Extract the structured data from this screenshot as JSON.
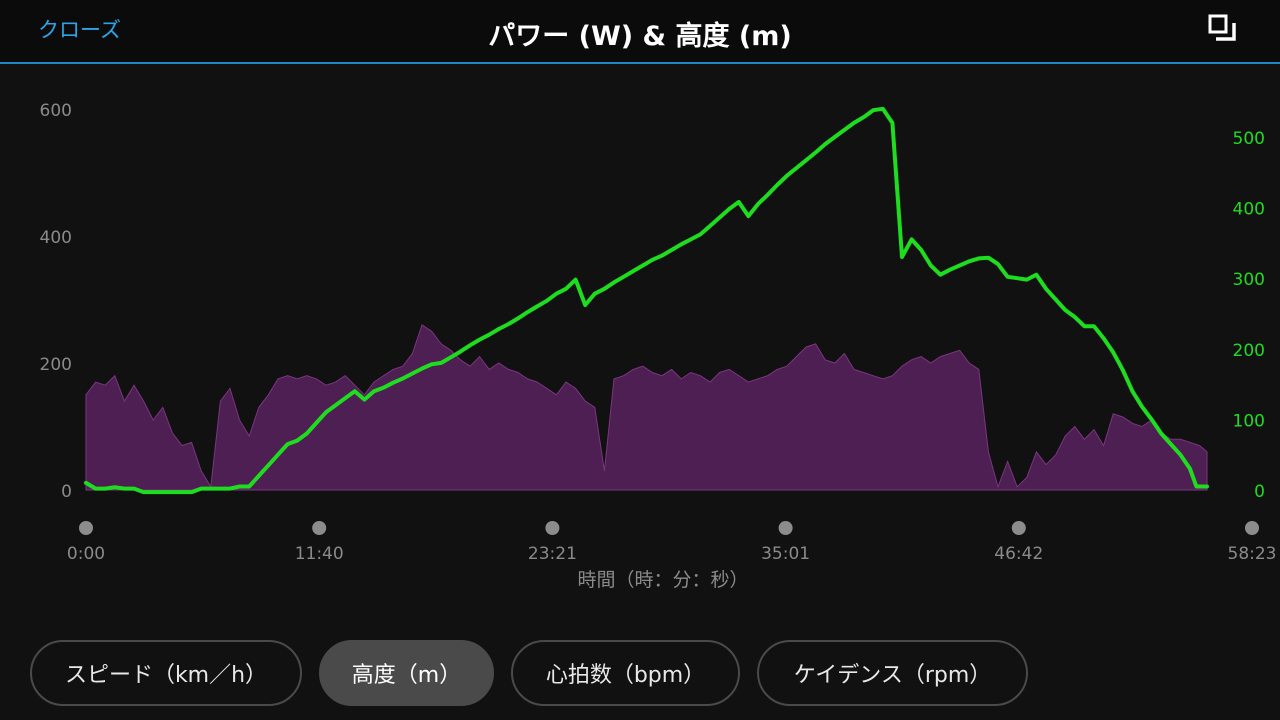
{
  "header": {
    "close_label": "クローズ",
    "title": "パワー (W) & 高度 (m)",
    "expand_icon": "expand-icon"
  },
  "chart_data": {
    "type": "area+line",
    "xlabel": "時間（時：分：秒）",
    "x_ticks": [
      "0:00",
      "11:40",
      "23:21",
      "35:01",
      "46:42",
      "58:23"
    ],
    "x_range_seconds": [
      0,
      3503
    ],
    "left_axis": {
      "series": "パワー (W)",
      "ticks": [
        0,
        200,
        400,
        600
      ],
      "ylim": [
        0,
        600
      ]
    },
    "right_axis": {
      "series": "高度 (m)",
      "ticks": [
        0,
        100,
        200,
        300,
        400,
        500
      ],
      "ylim": [
        0,
        540
      ]
    },
    "colors": {
      "power_fill": "#4e1f52",
      "power_line": "#7a3580",
      "elevation": "#1edc1e",
      "left_axis_text": "#8a8a8a",
      "right_axis_text": "#1edc1e"
    },
    "series": [
      {
        "name": "パワー (W)",
        "axis": "left",
        "points": [
          [
            0,
            150
          ],
          [
            30,
            170
          ],
          [
            60,
            165
          ],
          [
            90,
            180
          ],
          [
            120,
            140
          ],
          [
            150,
            165
          ],
          [
            180,
            140
          ],
          [
            210,
            110
          ],
          [
            240,
            130
          ],
          [
            270,
            90
          ],
          [
            300,
            70
          ],
          [
            330,
            75
          ],
          [
            360,
            30
          ],
          [
            390,
            5
          ],
          [
            420,
            140
          ],
          [
            450,
            160
          ],
          [
            480,
            110
          ],
          [
            510,
            85
          ],
          [
            540,
            130
          ],
          [
            570,
            150
          ],
          [
            600,
            175
          ],
          [
            630,
            180
          ],
          [
            660,
            175
          ],
          [
            690,
            180
          ],
          [
            720,
            175
          ],
          [
            750,
            165
          ],
          [
            780,
            170
          ],
          [
            810,
            180
          ],
          [
            840,
            165
          ],
          [
            870,
            150
          ],
          [
            900,
            170
          ],
          [
            930,
            180
          ],
          [
            960,
            190
          ],
          [
            990,
            195
          ],
          [
            1020,
            215
          ],
          [
            1050,
            260
          ],
          [
            1080,
            250
          ],
          [
            1110,
            230
          ],
          [
            1140,
            220
          ],
          [
            1170,
            205
          ],
          [
            1200,
            195
          ],
          [
            1230,
            210
          ],
          [
            1260,
            190
          ],
          [
            1290,
            200
          ],
          [
            1320,
            190
          ],
          [
            1350,
            185
          ],
          [
            1380,
            175
          ],
          [
            1410,
            170
          ],
          [
            1440,
            160
          ],
          [
            1470,
            150
          ],
          [
            1500,
            170
          ],
          [
            1530,
            160
          ],
          [
            1560,
            140
          ],
          [
            1590,
            130
          ],
          [
            1620,
            30
          ],
          [
            1650,
            175
          ],
          [
            1680,
            180
          ],
          [
            1710,
            190
          ],
          [
            1740,
            195
          ],
          [
            1770,
            185
          ],
          [
            1800,
            180
          ],
          [
            1830,
            190
          ],
          [
            1860,
            175
          ],
          [
            1890,
            185
          ],
          [
            1920,
            180
          ],
          [
            1950,
            170
          ],
          [
            1980,
            185
          ],
          [
            2010,
            190
          ],
          [
            2040,
            180
          ],
          [
            2070,
            170
          ],
          [
            2100,
            175
          ],
          [
            2130,
            180
          ],
          [
            2160,
            190
          ],
          [
            2190,
            195
          ],
          [
            2220,
            210
          ],
          [
            2250,
            225
          ],
          [
            2280,
            230
          ],
          [
            2310,
            205
          ],
          [
            2340,
            200
          ],
          [
            2370,
            215
          ],
          [
            2400,
            190
          ],
          [
            2430,
            185
          ],
          [
            2460,
            180
          ],
          [
            2490,
            175
          ],
          [
            2520,
            180
          ],
          [
            2550,
            195
          ],
          [
            2580,
            205
          ],
          [
            2610,
            210
          ],
          [
            2640,
            200
          ],
          [
            2670,
            210
          ],
          [
            2700,
            215
          ],
          [
            2730,
            220
          ],
          [
            2760,
            200
          ],
          [
            2790,
            190
          ],
          [
            2820,
            60
          ],
          [
            2850,
            5
          ],
          [
            2880,
            45
          ],
          [
            2910,
            5
          ],
          [
            2940,
            20
          ],
          [
            2970,
            60
          ],
          [
            3000,
            40
          ],
          [
            3030,
            55
          ],
          [
            3060,
            85
          ],
          [
            3090,
            100
          ],
          [
            3120,
            80
          ],
          [
            3150,
            95
          ],
          [
            3180,
            70
          ],
          [
            3210,
            120
          ],
          [
            3240,
            115
          ],
          [
            3270,
            105
          ],
          [
            3300,
            100
          ],
          [
            3330,
            110
          ],
          [
            3360,
            90
          ],
          [
            3390,
            80
          ],
          [
            3420,
            80
          ],
          [
            3450,
            75
          ],
          [
            3480,
            70
          ],
          [
            3503,
            60
          ]
        ]
      },
      {
        "name": "高度 (m)",
        "axis": "right",
        "points": [
          [
            0,
            10
          ],
          [
            30,
            2
          ],
          [
            60,
            2
          ],
          [
            90,
            4
          ],
          [
            120,
            2
          ],
          [
            150,
            2
          ],
          [
            180,
            -3
          ],
          [
            200,
            -3
          ],
          [
            250,
            -3
          ],
          [
            300,
            -3
          ],
          [
            330,
            -3
          ],
          [
            360,
            2
          ],
          [
            390,
            2
          ],
          [
            420,
            2
          ],
          [
            450,
            2
          ],
          [
            480,
            5
          ],
          [
            510,
            5
          ],
          [
            540,
            20
          ],
          [
            570,
            35
          ],
          [
            600,
            50
          ],
          [
            630,
            65
          ],
          [
            660,
            70
          ],
          [
            690,
            80
          ],
          [
            720,
            95
          ],
          [
            750,
            110
          ],
          [
            780,
            120
          ],
          [
            810,
            130
          ],
          [
            840,
            140
          ],
          [
            870,
            128
          ],
          [
            900,
            140
          ],
          [
            930,
            145
          ],
          [
            960,
            152
          ],
          [
            990,
            158
          ],
          [
            1020,
            165
          ],
          [
            1050,
            172
          ],
          [
            1080,
            178
          ],
          [
            1110,
            180
          ],
          [
            1140,
            188
          ],
          [
            1170,
            196
          ],
          [
            1200,
            205
          ],
          [
            1230,
            213
          ],
          [
            1260,
            220
          ],
          [
            1290,
            228
          ],
          [
            1320,
            235
          ],
          [
            1350,
            243
          ],
          [
            1380,
            252
          ],
          [
            1410,
            260
          ],
          [
            1440,
            268
          ],
          [
            1470,
            278
          ],
          [
            1500,
            285
          ],
          [
            1530,
            298
          ],
          [
            1560,
            262
          ],
          [
            1590,
            278
          ],
          [
            1620,
            285
          ],
          [
            1650,
            294
          ],
          [
            1680,
            302
          ],
          [
            1710,
            310
          ],
          [
            1740,
            318
          ],
          [
            1770,
            326
          ],
          [
            1800,
            332
          ],
          [
            1830,
            340
          ],
          [
            1860,
            348
          ],
          [
            1890,
            355
          ],
          [
            1920,
            362
          ],
          [
            1950,
            374
          ],
          [
            1980,
            386
          ],
          [
            2010,
            398
          ],
          [
            2040,
            408
          ],
          [
            2070,
            388
          ],
          [
            2100,
            405
          ],
          [
            2130,
            418
          ],
          [
            2160,
            432
          ],
          [
            2190,
            445
          ],
          [
            2220,
            456
          ],
          [
            2250,
            467
          ],
          [
            2280,
            478
          ],
          [
            2310,
            490
          ],
          [
            2340,
            500
          ],
          [
            2370,
            510
          ],
          [
            2400,
            520
          ],
          [
            2430,
            528
          ],
          [
            2460,
            538
          ],
          [
            2490,
            540
          ],
          [
            2520,
            520
          ],
          [
            2550,
            330
          ],
          [
            2580,
            355
          ],
          [
            2610,
            340
          ],
          [
            2640,
            318
          ],
          [
            2670,
            305
          ],
          [
            2700,
            312
          ],
          [
            2730,
            318
          ],
          [
            2760,
            324
          ],
          [
            2790,
            328
          ],
          [
            2820,
            329
          ],
          [
            2850,
            320
          ],
          [
            2880,
            302
          ],
          [
            2910,
            300
          ],
          [
            2940,
            298
          ],
          [
            2970,
            305
          ],
          [
            3000,
            285
          ],
          [
            3030,
            270
          ],
          [
            3060,
            255
          ],
          [
            3090,
            245
          ],
          [
            3120,
            232
          ],
          [
            3150,
            232
          ],
          [
            3180,
            215
          ],
          [
            3210,
            195
          ],
          [
            3240,
            170
          ],
          [
            3270,
            140
          ],
          [
            3300,
            118
          ],
          [
            3330,
            100
          ],
          [
            3360,
            80
          ],
          [
            3390,
            65
          ],
          [
            3420,
            50
          ],
          [
            3450,
            30
          ],
          [
            3470,
            5
          ],
          [
            3503,
            5
          ]
        ]
      }
    ]
  },
  "buttons": [
    {
      "label": "スピード（km／h）",
      "active": false
    },
    {
      "label": "高度（m）",
      "active": true
    },
    {
      "label": "心拍数（bpm）",
      "active": false
    },
    {
      "label": "ケイデンス（rpm）",
      "active": false
    }
  ]
}
